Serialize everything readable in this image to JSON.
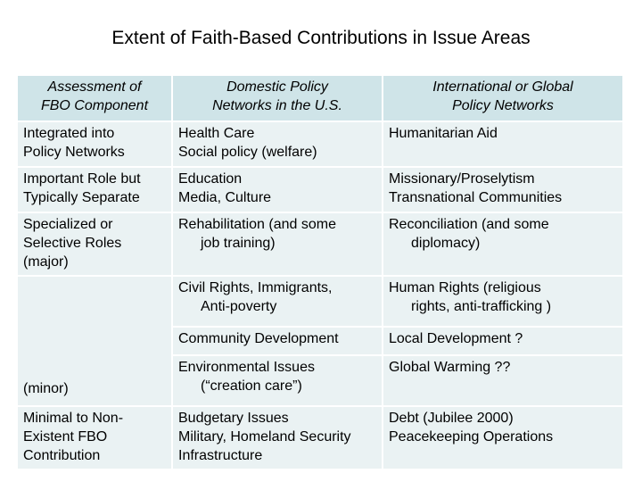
{
  "title": "Extent of Faith-Based Contributions in Issue Areas",
  "header": {
    "col1": [
      "Assessment of",
      "FBO Component"
    ],
    "col2": [
      "Domestic Policy",
      "Networks in the U.S."
    ],
    "col3": [
      "International or Global",
      "Policy Networks"
    ]
  },
  "rows": {
    "integrated": {
      "label": [
        "Integrated into",
        "Policy Networks"
      ],
      "domestic": [
        "Health Care",
        "Social policy (welfare)"
      ],
      "international": [
        "Humanitarian Aid"
      ]
    },
    "important": {
      "label": [
        "Important Role but",
        "Typically Separate"
      ],
      "domestic": [
        "Education",
        "Media, Culture"
      ],
      "international": [
        "Missionary/Proselytism",
        "Transnational Communities"
      ]
    },
    "specialized": {
      "label": [
        "Specialized or",
        "Selective Roles",
        "(major)"
      ],
      "domestic": [
        "Rehabilitation (and some",
        "job training)"
      ],
      "international": [
        "Reconciliation (and some",
        "diplomacy)"
      ]
    },
    "civil": {
      "domestic": [
        "Civil Rights, Immigrants,",
        "Anti-poverty"
      ],
      "international": [
        "Human Rights (religious",
        "rights, anti-trafficking )"
      ]
    },
    "community": {
      "domestic": [
        "Community Development"
      ],
      "international": [
        "Local Development ?"
      ]
    },
    "minor": {
      "label": [
        "(minor)"
      ],
      "domestic": [
        "Environmental Issues",
        "(“creation care”)"
      ],
      "international": [
        "Global Warming ??"
      ]
    },
    "minimal": {
      "label": [
        "Minimal to Non-",
        "Existent FBO",
        "Contribution"
      ],
      "domestic": [
        "Budgetary Issues",
        "Military, Homeland Security",
        "Infrastructure"
      ],
      "international": [
        "Debt (Jubilee 2000)",
        "Peacekeeping Operations"
      ]
    }
  }
}
